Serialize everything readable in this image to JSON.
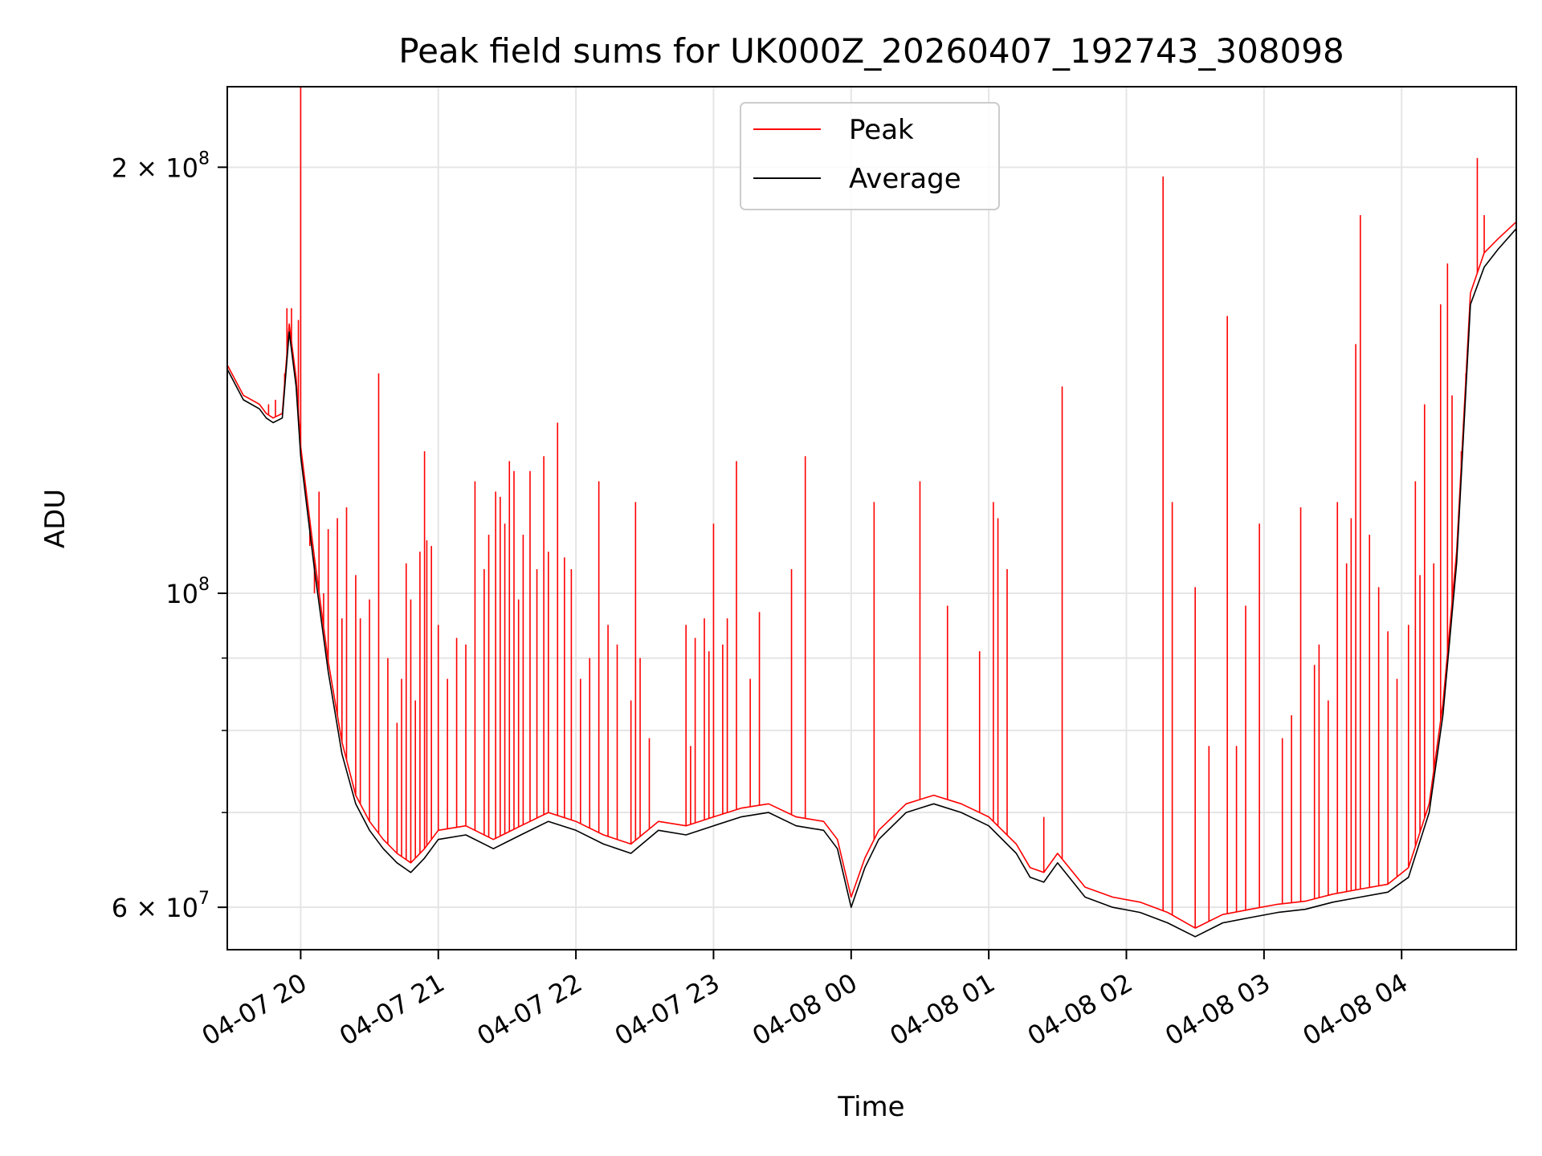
{
  "chart_data": {
    "type": "line",
    "title": "Peak field sums for UK000Z_20260407_192743_308098",
    "xlabel": "Time",
    "ylabel": "ADU",
    "yscale": "log",
    "xlim": [
      "2026-04-07 19:28",
      "2026-04-08 04:50"
    ],
    "ylim": [
      56000000,
      228000000
    ],
    "x_ticks": [
      {
        "at": "2026-04-07 20:00",
        "label": "04-07 20"
      },
      {
        "at": "2026-04-07 21:00",
        "label": "04-07 21"
      },
      {
        "at": "2026-04-07 22:00",
        "label": "04-07 22"
      },
      {
        "at": "2026-04-07 23:00",
        "label": "04-07 23"
      },
      {
        "at": "2026-04-08 00:00",
        "label": "04-08 00"
      },
      {
        "at": "2026-04-08 01:00",
        "label": "04-08 01"
      },
      {
        "at": "2026-04-08 02:00",
        "label": "04-08 02"
      },
      {
        "at": "2026-04-08 03:00",
        "label": "04-08 03"
      },
      {
        "at": "2026-04-08 04:00",
        "label": "04-08 04"
      }
    ],
    "y_major_ticks": [
      {
        "value": 60000000,
        "base": "6 × 10",
        "exp": "7"
      },
      {
        "value": 100000000,
        "base": "10",
        "exp": "8"
      },
      {
        "value": 200000000,
        "base": "2 × 10",
        "exp": "8"
      }
    ],
    "y_minor_ticks": [
      70000000,
      80000000,
      90000000
    ],
    "grid": true,
    "legend": {
      "position": "upper center"
    },
    "series": [
      {
        "name": "Average",
        "color": "#000000",
        "x": [
          "2026-04-07 19:28",
          "2026-04-07 19:35",
          "2026-04-07 19:42",
          "2026-04-07 19:45",
          "2026-04-07 19:48",
          "2026-04-07 19:52",
          "2026-04-07 19:55",
          "2026-04-07 19:58",
          "2026-04-07 20:00",
          "2026-04-07 20:06",
          "2026-04-07 20:12",
          "2026-04-07 20:18",
          "2026-04-07 20:24",
          "2026-04-07 20:30",
          "2026-04-07 20:36",
          "2026-04-07 20:42",
          "2026-04-07 20:48",
          "2026-04-07 20:54",
          "2026-04-07 21:00",
          "2026-04-07 21:12",
          "2026-04-07 21:24",
          "2026-04-07 21:36",
          "2026-04-07 21:48",
          "2026-04-07 22:00",
          "2026-04-07 22:12",
          "2026-04-07 22:24",
          "2026-04-07 22:36",
          "2026-04-07 22:48",
          "2026-04-07 23:00",
          "2026-04-07 23:12",
          "2026-04-07 23:24",
          "2026-04-07 23:36",
          "2026-04-07 23:48",
          "2026-04-07 23:54",
          "2026-04-08 00:00",
          "2026-04-08 00:06",
          "2026-04-08 00:12",
          "2026-04-08 00:24",
          "2026-04-08 00:36",
          "2026-04-08 00:48",
          "2026-04-08 01:00",
          "2026-04-08 01:12",
          "2026-04-08 01:18",
          "2026-04-08 01:24",
          "2026-04-08 01:30",
          "2026-04-08 01:42",
          "2026-04-08 01:54",
          "2026-04-08 02:06",
          "2026-04-08 02:18",
          "2026-04-08 02:30",
          "2026-04-08 02:42",
          "2026-04-08 02:54",
          "2026-04-08 03:06",
          "2026-04-08 03:18",
          "2026-04-08 03:30",
          "2026-04-08 03:42",
          "2026-04-08 03:54",
          "2026-04-08 04:03",
          "2026-04-08 04:12",
          "2026-04-08 04:18",
          "2026-04-08 04:24",
          "2026-04-08 04:30",
          "2026-04-08 04:36",
          "2026-04-08 04:42",
          "2026-04-08 04:50"
        ],
        "y": [
          144000000,
          137000000,
          135000000,
          133000000,
          132000000,
          133000000,
          153000000,
          140000000,
          125000000,
          104000000,
          88000000,
          77000000,
          71000000,
          68000000,
          66000000,
          64500000,
          63500000,
          65000000,
          67000000,
          67500000,
          66000000,
          67500000,
          69000000,
          68000000,
          66500000,
          65500000,
          68000000,
          67500000,
          68500000,
          69500000,
          70000000,
          68500000,
          68000000,
          66000000,
          60000000,
          64000000,
          67000000,
          70000000,
          71000000,
          70000000,
          68500000,
          65500000,
          63000000,
          62500000,
          64500000,
          61000000,
          60000000,
          59500000,
          58500000,
          57200000,
          58500000,
          59000000,
          59500000,
          59800000,
          60500000,
          61000000,
          61500000,
          63000000,
          70000000,
          82000000,
          105000000,
          160000000,
          170000000,
          175000000,
          181000000
        ]
      },
      {
        "name": "Peak",
        "color": "#ff0000",
        "x": [
          "2026-04-07 19:28",
          "2026-04-07 19:35",
          "2026-04-07 19:42",
          "2026-04-07 19:45",
          "2026-04-07 19:48",
          "2026-04-07 19:52",
          "2026-04-07 19:55",
          "2026-04-07 19:58",
          "2026-04-07 20:00",
          "2026-04-07 20:06",
          "2026-04-07 20:12",
          "2026-04-07 20:18",
          "2026-04-07 20:24",
          "2026-04-07 20:30",
          "2026-04-07 20:36",
          "2026-04-07 20:42",
          "2026-04-07 20:48",
          "2026-04-07 20:54",
          "2026-04-07 21:00",
          "2026-04-07 21:12",
          "2026-04-07 21:24",
          "2026-04-07 21:36",
          "2026-04-07 21:48",
          "2026-04-07 22:00",
          "2026-04-07 22:12",
          "2026-04-07 22:24",
          "2026-04-07 22:36",
          "2026-04-07 22:48",
          "2026-04-07 23:00",
          "2026-04-07 23:12",
          "2026-04-07 23:24",
          "2026-04-07 23:36",
          "2026-04-07 23:48",
          "2026-04-07 23:54",
          "2026-04-08 00:00",
          "2026-04-08 00:06",
          "2026-04-08 00:12",
          "2026-04-08 00:24",
          "2026-04-08 00:36",
          "2026-04-08 00:48",
          "2026-04-08 01:00",
          "2026-04-08 01:12",
          "2026-04-08 01:18",
          "2026-04-08 01:24",
          "2026-04-08 01:30",
          "2026-04-08 01:42",
          "2026-04-08 01:54",
          "2026-04-08 02:06",
          "2026-04-08 02:18",
          "2026-04-08 02:30",
          "2026-04-08 02:42",
          "2026-04-08 02:54",
          "2026-04-08 03:06",
          "2026-04-08 03:18",
          "2026-04-08 03:30",
          "2026-04-08 03:42",
          "2026-04-08 03:54",
          "2026-04-08 04:03",
          "2026-04-08 04:12",
          "2026-04-08 04:18",
          "2026-04-08 04:24",
          "2026-04-08 04:30",
          "2026-04-08 04:36",
          "2026-04-08 04:42",
          "2026-04-08 04:50"
        ],
        "y": [
          145000000,
          138000000,
          136000000,
          134000000,
          133000000,
          134000000,
          155000000,
          142000000,
          127000000,
          106000000,
          89500000,
          78500000,
          72000000,
          69000000,
          67000000,
          65500000,
          64500000,
          66000000,
          68000000,
          68500000,
          67000000,
          68500000,
          70000000,
          69000000,
          67500000,
          66500000,
          69000000,
          68500000,
          69500000,
          70500000,
          71000000,
          69500000,
          69000000,
          67000000,
          61000000,
          65000000,
          68000000,
          71000000,
          72000000,
          71000000,
          69500000,
          66500000,
          64000000,
          63500000,
          65500000,
          62000000,
          61000000,
          60500000,
          59500000,
          58000000,
          59300000,
          59800000,
          60300000,
          60600000,
          61300000,
          61800000,
          62300000,
          64000000,
          71000000,
          83500000,
          107000000,
          163000000,
          174000000,
          178000000,
          183000000
        ],
        "spikes": [
          {
            "t": "2026-04-07 19:46",
            "y": 136000000
          },
          {
            "t": "2026-04-07 19:49",
            "y": 137000000
          },
          {
            "t": "2026-04-07 19:54",
            "y": 159000000
          },
          {
            "t": "2026-04-07 19:56",
            "y": 159000000
          },
          {
            "t": "2026-04-07 19:59",
            "y": 156000000
          },
          {
            "t": "2026-04-07 19:53",
            "y": 143000000
          },
          {
            "t": "2026-04-07 20:00",
            "y": 228000000
          },
          {
            "t": "2026-04-07 20:04",
            "y": 108000000
          },
          {
            "t": "2026-04-07 20:06",
            "y": 100000000
          },
          {
            "t": "2026-04-07 20:08",
            "y": 118000000
          },
          {
            "t": "2026-04-07 20:10",
            "y": 100000000
          },
          {
            "t": "2026-04-07 20:12",
            "y": 111000000
          },
          {
            "t": "2026-04-07 20:16",
            "y": 113000000
          },
          {
            "t": "2026-04-07 20:18",
            "y": 96000000
          },
          {
            "t": "2026-04-07 20:20",
            "y": 115000000
          },
          {
            "t": "2026-04-07 20:24",
            "y": 103000000
          },
          {
            "t": "2026-04-07 20:26",
            "y": 96000000
          },
          {
            "t": "2026-04-07 20:30",
            "y": 99000000
          },
          {
            "t": "2026-04-07 20:34",
            "y": 143000000
          },
          {
            "t": "2026-04-07 20:38",
            "y": 90000000
          },
          {
            "t": "2026-04-07 20:42",
            "y": 81000000
          },
          {
            "t": "2026-04-07 20:44",
            "y": 87000000
          },
          {
            "t": "2026-04-07 20:46",
            "y": 105000000
          },
          {
            "t": "2026-04-07 20:48",
            "y": 99000000
          },
          {
            "t": "2026-04-07 20:50",
            "y": 84000000
          },
          {
            "t": "2026-04-07 20:52",
            "y": 107000000
          },
          {
            "t": "2026-04-07 20:54",
            "y": 126000000
          },
          {
            "t": "2026-04-07 20:55",
            "y": 109000000
          },
          {
            "t": "2026-04-07 20:57",
            "y": 108000000
          },
          {
            "t": "2026-04-07 21:00",
            "y": 95000000
          },
          {
            "t": "2026-04-07 21:04",
            "y": 87000000
          },
          {
            "t": "2026-04-07 21:08",
            "y": 93000000
          },
          {
            "t": "2026-04-07 21:12",
            "y": 92000000
          },
          {
            "t": "2026-04-07 21:16",
            "y": 120000000
          },
          {
            "t": "2026-04-07 21:20",
            "y": 104000000
          },
          {
            "t": "2026-04-07 21:22",
            "y": 110000000
          },
          {
            "t": "2026-04-07 21:25",
            "y": 118000000
          },
          {
            "t": "2026-04-07 21:27",
            "y": 117000000
          },
          {
            "t": "2026-04-07 21:29",
            "y": 112000000
          },
          {
            "t": "2026-04-07 21:31",
            "y": 124000000
          },
          {
            "t": "2026-04-07 21:33",
            "y": 122000000
          },
          {
            "t": "2026-04-07 21:35",
            "y": 99000000
          },
          {
            "t": "2026-04-07 21:37",
            "y": 110000000
          },
          {
            "t": "2026-04-07 21:40",
            "y": 122000000
          },
          {
            "t": "2026-04-07 21:43",
            "y": 104000000
          },
          {
            "t": "2026-04-07 21:46",
            "y": 125000000
          },
          {
            "t": "2026-04-07 21:48",
            "y": 107000000
          },
          {
            "t": "2026-04-07 21:52",
            "y": 132000000
          },
          {
            "t": "2026-04-07 21:55",
            "y": 106000000
          },
          {
            "t": "2026-04-07 21:58",
            "y": 104000000
          },
          {
            "t": "2026-04-07 22:02",
            "y": 87000000
          },
          {
            "t": "2026-04-07 22:06",
            "y": 90000000
          },
          {
            "t": "2026-04-07 22:10",
            "y": 120000000
          },
          {
            "t": "2026-04-07 22:14",
            "y": 95000000
          },
          {
            "t": "2026-04-07 22:18",
            "y": 92000000
          },
          {
            "t": "2026-04-07 22:24",
            "y": 84000000
          },
          {
            "t": "2026-04-07 22:26",
            "y": 116000000
          },
          {
            "t": "2026-04-07 22:28",
            "y": 90000000
          },
          {
            "t": "2026-04-07 22:32",
            "y": 79000000
          },
          {
            "t": "2026-04-07 22:48",
            "y": 95000000
          },
          {
            "t": "2026-04-07 22:50",
            "y": 78000000
          },
          {
            "t": "2026-04-07 22:52",
            "y": 93000000
          },
          {
            "t": "2026-04-07 22:56",
            "y": 96000000
          },
          {
            "t": "2026-04-07 22:58",
            "y": 91000000
          },
          {
            "t": "2026-04-07 23:00",
            "y": 112000000
          },
          {
            "t": "2026-04-07 23:04",
            "y": 92000000
          },
          {
            "t": "2026-04-07 23:06",
            "y": 96000000
          },
          {
            "t": "2026-04-07 23:10",
            "y": 124000000
          },
          {
            "t": "2026-04-07 23:16",
            "y": 87000000
          },
          {
            "t": "2026-04-07 23:20",
            "y": 97000000
          },
          {
            "t": "2026-04-07 23:34",
            "y": 104000000
          },
          {
            "t": "2026-04-07 23:40",
            "y": 125000000
          },
          {
            "t": "2026-04-08 00:10",
            "y": 116000000
          },
          {
            "t": "2026-04-08 00:30",
            "y": 120000000
          },
          {
            "t": "2026-04-08 00:42",
            "y": 98000000
          },
          {
            "t": "2026-04-08 00:56",
            "y": 91000000
          },
          {
            "t": "2026-04-08 01:02",
            "y": 116000000
          },
          {
            "t": "2026-04-08 01:04",
            "y": 113000000
          },
          {
            "t": "2026-04-08 01:08",
            "y": 104000000
          },
          {
            "t": "2026-04-08 01:24",
            "y": 69500000
          },
          {
            "t": "2026-04-08 01:32",
            "y": 140000000
          },
          {
            "t": "2026-04-08 02:16",
            "y": 197000000
          },
          {
            "t": "2026-04-08 02:20",
            "y": 116000000
          },
          {
            "t": "2026-04-08 02:30",
            "y": 101000000
          },
          {
            "t": "2026-04-08 02:36",
            "y": 78000000
          },
          {
            "t": "2026-04-08 02:44",
            "y": 157000000
          },
          {
            "t": "2026-04-08 02:48",
            "y": 78000000
          },
          {
            "t": "2026-04-08 02:52",
            "y": 98000000
          },
          {
            "t": "2026-04-08 02:58",
            "y": 112000000
          },
          {
            "t": "2026-04-08 03:08",
            "y": 79000000
          },
          {
            "t": "2026-04-08 03:12",
            "y": 82000000
          },
          {
            "t": "2026-04-08 03:16",
            "y": 115000000
          },
          {
            "t": "2026-04-08 03:22",
            "y": 89000000
          },
          {
            "t": "2026-04-08 03:24",
            "y": 92000000
          },
          {
            "t": "2026-04-08 03:28",
            "y": 84000000
          },
          {
            "t": "2026-04-08 03:32",
            "y": 116000000
          },
          {
            "t": "2026-04-08 03:36",
            "y": 105000000
          },
          {
            "t": "2026-04-08 03:38",
            "y": 113000000
          },
          {
            "t": "2026-04-08 03:40",
            "y": 150000000
          },
          {
            "t": "2026-04-08 03:42",
            "y": 185000000
          },
          {
            "t": "2026-04-08 03:46",
            "y": 110000000
          },
          {
            "t": "2026-04-08 03:50",
            "y": 101000000
          },
          {
            "t": "2026-04-08 03:54",
            "y": 94000000
          },
          {
            "t": "2026-04-08 03:58",
            "y": 87000000
          },
          {
            "t": "2026-04-08 04:03",
            "y": 95000000
          },
          {
            "t": "2026-04-08 04:06",
            "y": 120000000
          },
          {
            "t": "2026-04-08 04:08",
            "y": 103000000
          },
          {
            "t": "2026-04-08 04:10",
            "y": 136000000
          },
          {
            "t": "2026-04-08 04:14",
            "y": 105000000
          },
          {
            "t": "2026-04-08 04:17",
            "y": 160000000
          },
          {
            "t": "2026-04-08 04:20",
            "y": 171000000
          },
          {
            "t": "2026-04-08 04:22",
            "y": 138000000
          },
          {
            "t": "2026-04-08 04:26",
            "y": 126000000
          },
          {
            "t": "2026-04-08 04:28",
            "y": 143000000
          },
          {
            "t": "2026-04-08 04:33",
            "y": 203000000
          },
          {
            "t": "2026-04-08 04:36",
            "y": 185000000
          }
        ]
      }
    ]
  }
}
